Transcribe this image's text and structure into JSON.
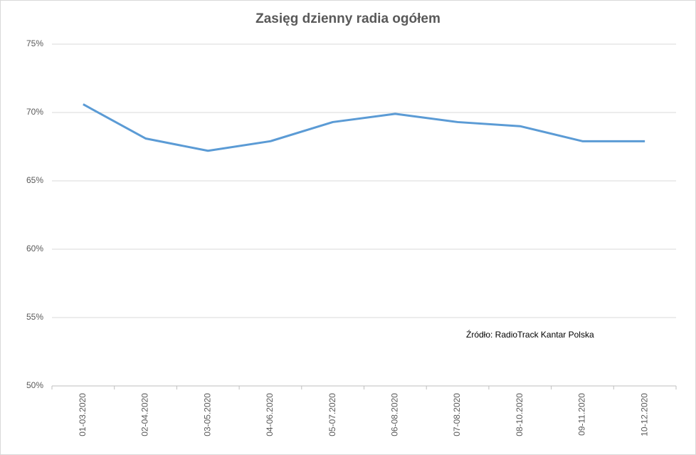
{
  "chart_data": {
    "type": "line",
    "title": "Zasięg dzienny radia ogółem",
    "categories": [
      "01-03.2020",
      "02-04.2020",
      "03-05.2020",
      "04-06.2020",
      "05-07.2020",
      "06-08.2020",
      "07-08.2020",
      "08-10.2020",
      "09-11.2020",
      "10-12.2020"
    ],
    "series": [
      {
        "name": "Zasięg dzienny",
        "color": "#5b9bd5",
        "values": [
          70.6,
          68.1,
          67.2,
          67.9,
          69.3,
          69.9,
          69.3,
          69.0,
          67.9,
          67.9
        ]
      }
    ],
    "ylim": [
      50,
      75
    ],
    "yticks": [
      {
        "value": 50,
        "label": "50%"
      },
      {
        "value": 55,
        "label": "55%"
      },
      {
        "value": 60,
        "label": "60%"
      },
      {
        "value": 65,
        "label": "65%"
      },
      {
        "value": 70,
        "label": "70%"
      },
      {
        "value": 75,
        "label": "75%"
      }
    ],
    "grid": true,
    "annotation": "Źródło: RadioTrack Kantar Polska"
  }
}
